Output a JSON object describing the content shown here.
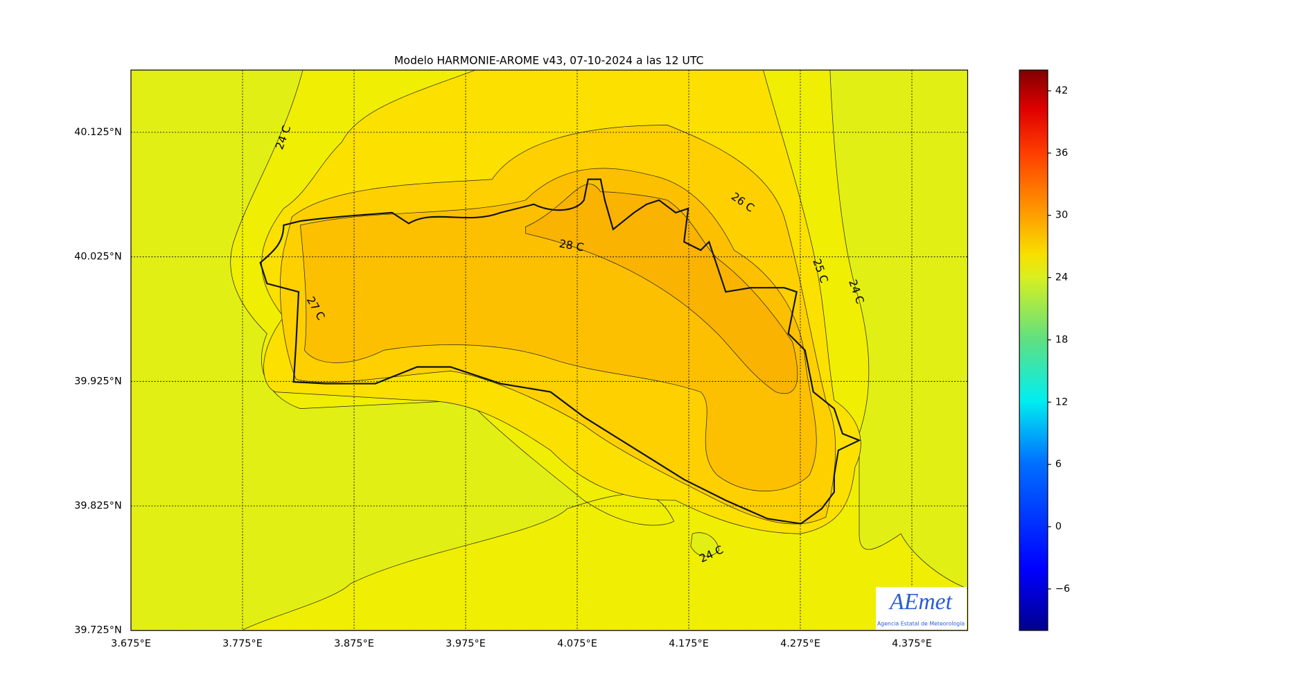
{
  "map": {
    "title": "Modelo HARMONIE-AROME v43, 07-10-2024 a las 12 UTC",
    "xlim": [
      3.675,
      4.425
    ],
    "ylim": [
      39.725,
      40.175
    ],
    "xticks": [
      {
        "value": 3.675,
        "label": "3.675°E"
      },
      {
        "value": 3.775,
        "label": "3.775°E"
      },
      {
        "value": 3.875,
        "label": "3.875°E"
      },
      {
        "value": 3.975,
        "label": "3.975°E"
      },
      {
        "value": 4.075,
        "label": "4.075°E"
      },
      {
        "value": 4.175,
        "label": "4.175°E"
      },
      {
        "value": 4.275,
        "label": "4.275°E"
      },
      {
        "value": 4.375,
        "label": "4.375°E"
      }
    ],
    "yticks": [
      {
        "value": 39.725,
        "label": "39.725°N"
      },
      {
        "value": 39.825,
        "label": "39.825°N"
      },
      {
        "value": 39.925,
        "label": "39.925°N"
      },
      {
        "value": 40.025,
        "label": "40.025°N"
      },
      {
        "value": 40.125,
        "label": "40.125°N"
      }
    ],
    "colorbar": {
      "lim": [
        -10,
        44
      ],
      "ticks": [
        {
          "value": -6,
          "label": "−6"
        },
        0,
        6,
        12,
        18,
        24,
        30,
        36,
        42
      ]
    },
    "contour_labels": [
      "24 C",
      "26 C",
      "28 C",
      "25 C",
      "24 C",
      "27 C",
      "24 C"
    ],
    "logo": {
      "name": "AEmet",
      "subtitle": "Agencia Estatal de Meteorología"
    }
  }
}
